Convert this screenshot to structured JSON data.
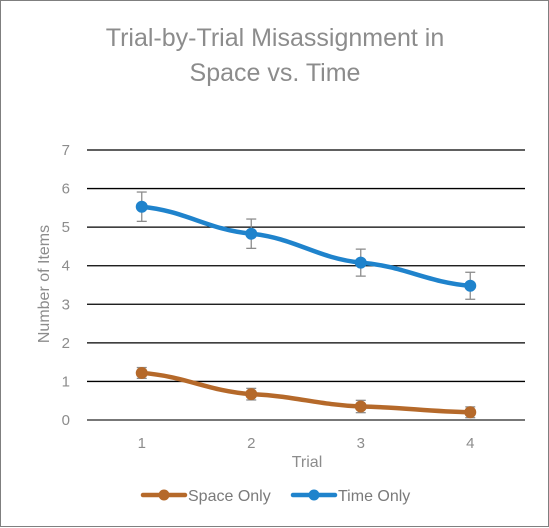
{
  "chart_data": {
    "type": "line",
    "title_lines": [
      "Trial-by-Trial Misassignment in",
      "Space vs. Time"
    ],
    "xlabel": "Trial",
    "ylabel": "Number of Items",
    "categories": [
      "1",
      "2",
      "3",
      "4"
    ],
    "y_ticks": [
      "0",
      "1",
      "2",
      "3",
      "4",
      "5",
      "6",
      "7"
    ],
    "ylim": [
      0,
      7
    ],
    "grid": true,
    "legend_position": "bottom",
    "series": [
      {
        "name": "Space Only",
        "color": "#b5692a",
        "values": [
          1.22,
          0.67,
          0.35,
          0.2
        ],
        "error": [
          0.14,
          0.15,
          0.16,
          0.14
        ]
      },
      {
        "name": "Time Only",
        "color": "#1f83cc",
        "values": [
          5.53,
          4.83,
          4.08,
          3.48
        ],
        "error": [
          0.38,
          0.38,
          0.35,
          0.35
        ]
      }
    ]
  }
}
